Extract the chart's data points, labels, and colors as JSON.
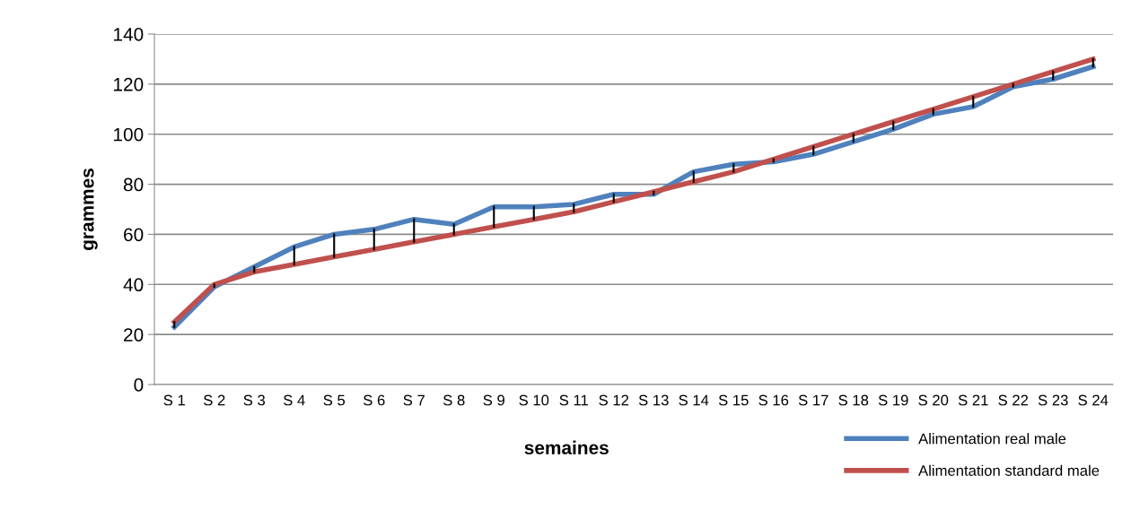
{
  "chart_data": {
    "type": "line",
    "xlabel": "semaines",
    "ylabel": "grammes",
    "categories": [
      "S 1",
      "S 2",
      "S 3",
      "S 4",
      "S 5",
      "S 6",
      "S 7",
      "S 8",
      "S 9",
      "S 10",
      "S 11",
      "S 12",
      "S 13",
      "S 14",
      "S 15",
      "S 16",
      "S 17",
      "S 18",
      "S 19",
      "S 20",
      "S 21",
      "S 22",
      "S 23",
      "S 24"
    ],
    "series": [
      {
        "name": "Alimentation real male",
        "color": "#4f81bd",
        "values": [
          23,
          39,
          47,
          55,
          60,
          62,
          66,
          64,
          71,
          71,
          72,
          76,
          76,
          85,
          88,
          89,
          92,
          97,
          102,
          108,
          111,
          119,
          122,
          127
        ]
      },
      {
        "name": "Alimentation standard male",
        "color": "#c0504d",
        "values": [
          25,
          40,
          45,
          48,
          51,
          54,
          57,
          60,
          63,
          66,
          69,
          73,
          77,
          81,
          85,
          90,
          95,
          100,
          105,
          110,
          115,
          120,
          125,
          130
        ]
      }
    ],
    "ylim": [
      0,
      140
    ],
    "yticks": [
      0,
      20,
      40,
      60,
      80,
      100,
      120,
      140
    ],
    "grid": "y",
    "legend": "bottom right",
    "marker": "none",
    "line_style": "solid"
  }
}
